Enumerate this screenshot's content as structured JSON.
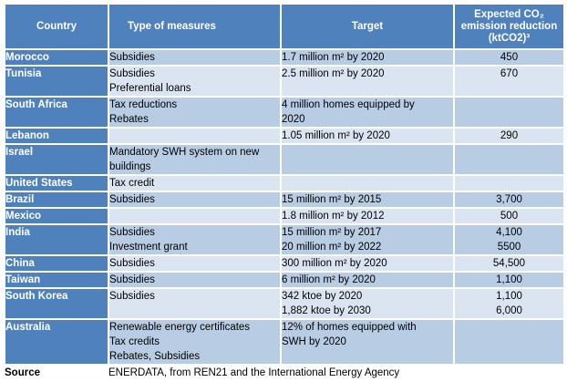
{
  "headers": {
    "country": "Country",
    "measures": "Type of measures",
    "target": "Target",
    "reduction_line1": "Expected CO₂",
    "reduction_line2": "emission reduction",
    "reduction_line3": "(ktCO2)³"
  },
  "rows": [
    {
      "country": "Morocco",
      "measures": [
        "Subsidies"
      ],
      "target": [
        "1.7 million m² by 2020"
      ],
      "reduction": [
        "450"
      ]
    },
    {
      "country": "Tunisia",
      "measures": [
        "Subsidies",
        "Preferential loans"
      ],
      "target": [
        "2.5 million m² by 2020"
      ],
      "reduction": [
        "670"
      ]
    },
    {
      "country": "South Africa",
      "measures": [
        "Tax reductions",
        "Rebates"
      ],
      "target": [
        "4 million homes equipped by",
        "2020"
      ],
      "reduction": []
    },
    {
      "country": "Lebanon",
      "measures": [],
      "target": [
        "1.05 million m² by 2020"
      ],
      "reduction": [
        "290"
      ]
    },
    {
      "country": "Israel",
      "measures": [
        "Mandatory SWH system on new",
        "buildings"
      ],
      "target": [],
      "reduction": []
    },
    {
      "country": "United States",
      "measures": [
        "Tax credit"
      ],
      "target": [],
      "reduction": []
    },
    {
      "country": "Brazil",
      "measures": [
        "Subsidies"
      ],
      "target": [
        "15 million m² by 2015"
      ],
      "reduction": [
        "3,700"
      ]
    },
    {
      "country": "Mexico",
      "measures": [],
      "target": [
        "1.8 million m² by 2012"
      ],
      "reduction": [
        "500"
      ]
    },
    {
      "country": "India",
      "measures": [
        "Subsidies",
        "Investment grant"
      ],
      "target": [
        "15 million m² by 2017",
        "20 million m² by 2022"
      ],
      "reduction": [
        "4,100",
        "5500"
      ]
    },
    {
      "country": "China",
      "measures": [
        "Subsidies"
      ],
      "target": [
        "300 million m² by 2020"
      ],
      "reduction": [
        "54,500"
      ]
    },
    {
      "country": "Taiwan",
      "measures": [
        "Subsidies"
      ],
      "target": [
        "6 million m² by 2020"
      ],
      "reduction": [
        "1,100"
      ]
    },
    {
      "country": "South Korea",
      "measures": [
        "Subsidies"
      ],
      "target": [
        "342 ktoe by 2020",
        "1,882 ktoe by 2030"
      ],
      "reduction": [
        "1,100",
        "6,000"
      ]
    },
    {
      "country": "Australia",
      "measures": [
        "Renewable energy certificates",
        "Tax credits",
        "Rebates, Subsidies"
      ],
      "target": [
        "12% of homes equipped with",
        "SWH by 2020"
      ],
      "reduction": []
    }
  ],
  "source": {
    "label": "Source",
    "text": "ENERDATA, from REN21 and the International Energy Agency"
  }
}
